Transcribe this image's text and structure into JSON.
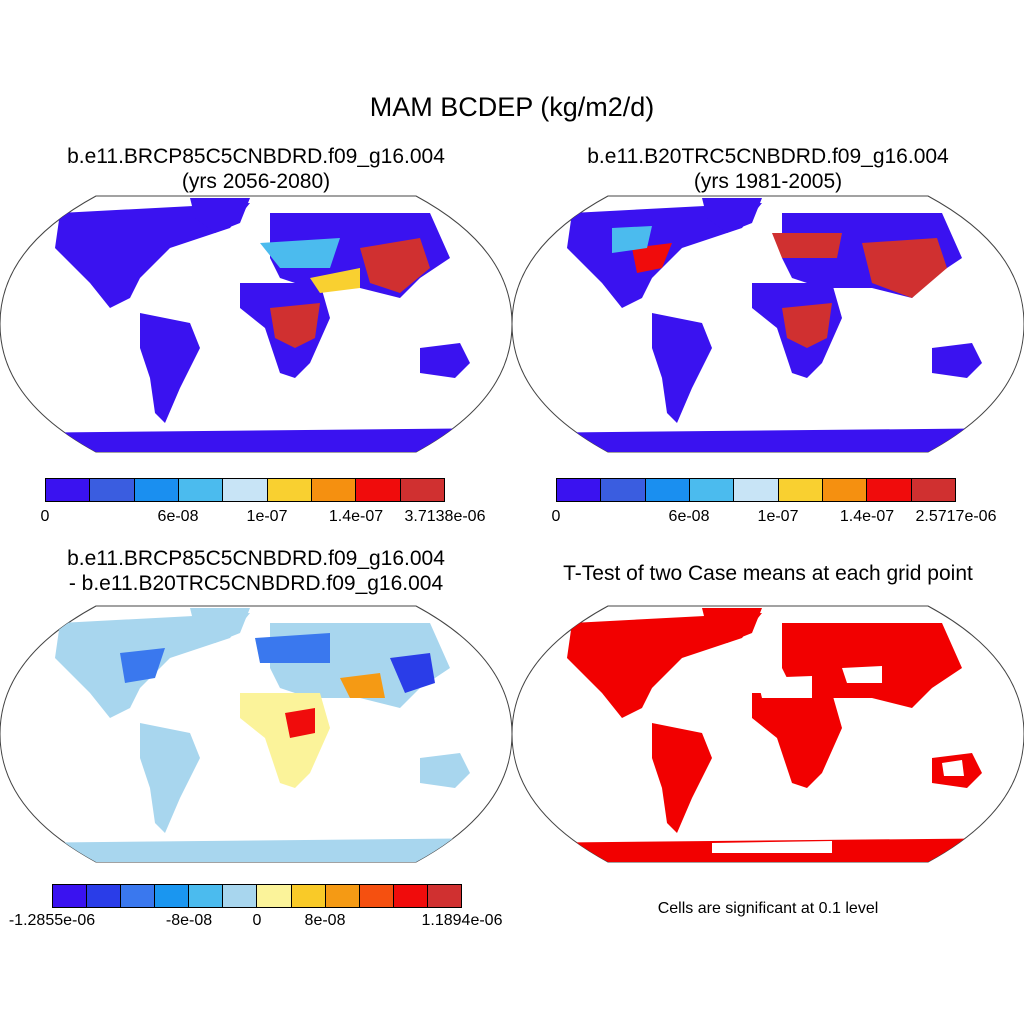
{
  "main_title": "MAM BCDEP (kg/m2/d)",
  "panels": {
    "rcp85": {
      "title_line1": "b.e11.BRCP85C5CNBDRD.f09_g16.004",
      "title_line2": "(yrs 2056-2080)",
      "colorbar": {
        "colors": [
          "#3a12f0",
          "#3a5de0",
          "#1a8ff0",
          "#4bbbee",
          "#c8e4f6",
          "#f9d030",
          "#f59010",
          "#f00c0c",
          "#d03030"
        ],
        "labels": [
          "0",
          "6e-08",
          "1e-07",
          "1.4e-07",
          "3.7138e-06"
        ]
      }
    },
    "b20tr": {
      "title_line1": "b.e11.B20TRC5CNBDRD.f09_g16.004",
      "title_line2": "(yrs 1981-2005)",
      "colorbar": {
        "colors": [
          "#3a12f0",
          "#3a5de0",
          "#1a8ff0",
          "#4bbbee",
          "#c8e4f6",
          "#f9d030",
          "#f59010",
          "#f00c0c",
          "#d03030"
        ],
        "labels": [
          "0",
          "6e-08",
          "1e-07",
          "1.4e-07",
          "2.5717e-06"
        ]
      }
    },
    "diff": {
      "title_line1": "b.e11.BRCP85C5CNBDRD.f09_g16.004",
      "title_line2": "- b.e11.B20TRC5CNBDRD.f09_g16.004",
      "colorbar": {
        "colors": [
          "#3a12f0",
          "#2a3de8",
          "#3a78ee",
          "#1a96f0",
          "#4bbbee",
          "#a8d6ee",
          "#fbf39a",
          "#f9ca28",
          "#f59a14",
          "#f55010",
          "#f00c0c",
          "#d03030"
        ],
        "labels": [
          "-1.2855e-06",
          "-8e-08",
          "0",
          "8e-08",
          "1.1894e-06"
        ]
      }
    },
    "ttest": {
      "title": "T-Test of two Case means at each grid point",
      "note": "Cells are significant at 0.1 level",
      "significant_color": "#f20000"
    }
  }
}
